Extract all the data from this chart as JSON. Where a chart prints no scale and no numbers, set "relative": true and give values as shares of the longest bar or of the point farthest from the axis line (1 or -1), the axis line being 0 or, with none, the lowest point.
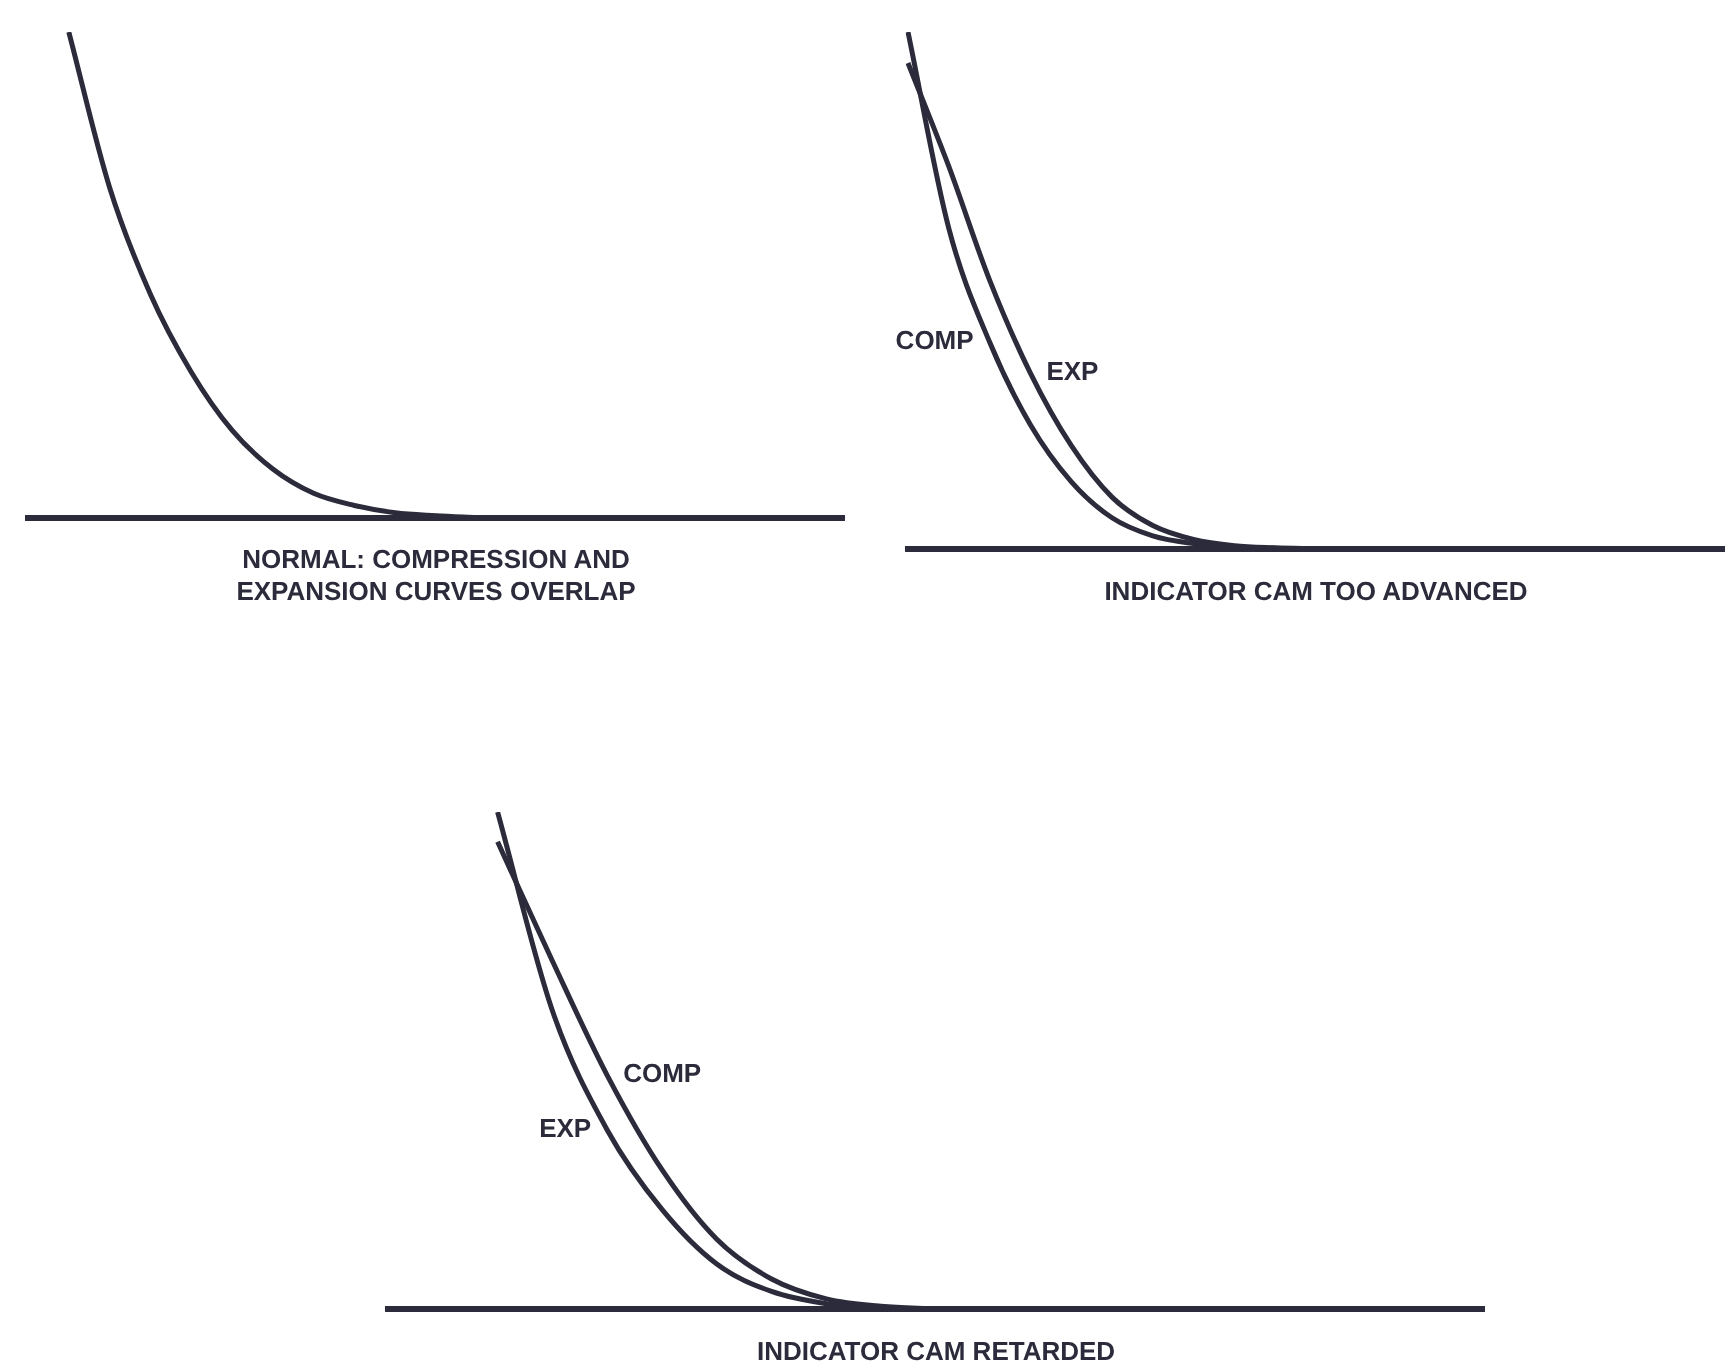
{
  "chart_data": [
    {
      "type": "line",
      "relative": true,
      "xlabel": "NORMAL: COMPRESSION AND\nEXPANSION CURVES OVERLAP",
      "categories": [
        null,
        null,
        null,
        null,
        null,
        null,
        null,
        null,
        null,
        null,
        null,
        null,
        null,
        null,
        null,
        null,
        null,
        null,
        null,
        null,
        null
      ],
      "series": [
        {
          "color": "#2b2b3b",
          "values": [
            null,
            1.0,
            0.68,
            0.46,
            0.3,
            0.18,
            0.1,
            0.05,
            0.025,
            0.01,
            0.004,
            0,
            null,
            null,
            null,
            null,
            null,
            null,
            null,
            null,
            null
          ]
        }
      ]
    },
    {
      "type": "line",
      "relative": true,
      "xlabel": "INDICATOR CAM TOO ADVANCED",
      "categories": [
        null,
        null,
        null,
        null,
        null,
        null,
        null,
        null,
        null,
        null,
        null,
        null,
        null,
        null,
        null,
        null,
        null,
        null,
        null,
        null,
        null
      ],
      "series": [
        {
          "name": "COMP",
          "color": "#2b2b3b",
          "values": [
            1.0,
            0.62,
            0.4,
            0.24,
            0.13,
            0.06,
            0.025,
            0.01,
            0.003,
            0,
            null,
            null,
            null,
            null,
            null,
            null,
            null,
            null,
            null,
            null,
            null
          ]
        },
        {
          "name": "EXP",
          "color": "#2b2b3b",
          "values": [
            0.94,
            0.74,
            0.52,
            0.34,
            0.2,
            0.1,
            0.045,
            0.018,
            0.006,
            0.002,
            0,
            null,
            null,
            null,
            null,
            null,
            null,
            null,
            null,
            null,
            null
          ]
        }
      ]
    },
    {
      "type": "line",
      "relative": true,
      "xlabel": "INDICATOR CAM RETARDED",
      "categories": [
        null,
        null,
        null,
        null,
        null,
        null,
        null,
        null,
        null,
        null,
        null,
        null,
        null,
        null,
        null,
        null,
        null,
        null,
        null,
        null,
        null
      ],
      "series": [
        {
          "name": "EXP",
          "color": "#2b2b3b",
          "values": [
            null,
            null,
            1.0,
            0.6,
            0.36,
            0.2,
            0.09,
            0.035,
            0.01,
            0,
            null,
            null,
            null,
            null,
            null,
            null,
            null,
            null,
            null,
            null,
            null
          ]
        },
        {
          "name": "COMP",
          "color": "#2b2b3b",
          "values": [
            null,
            null,
            0.94,
            0.7,
            0.47,
            0.28,
            0.14,
            0.06,
            0.02,
            0.005,
            0,
            null,
            null,
            null,
            null,
            null,
            null,
            null,
            null,
            null,
            null
          ]
        }
      ]
    }
  ]
}
